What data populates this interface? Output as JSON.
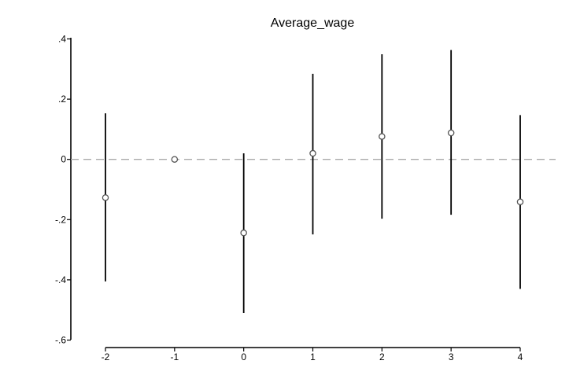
{
  "chart_data": {
    "type": "scatter",
    "title": "Average_wage",
    "xlabel": "",
    "ylabel": "",
    "x": [
      -2,
      -1,
      0,
      1,
      2,
      3,
      4
    ],
    "x_tick_labels": [
      "-2",
      "-1",
      "0",
      "1",
      "2",
      "3",
      "4"
    ],
    "y_ticks": [
      0.4,
      0.2,
      0,
      -0.2,
      -0.4,
      -0.6
    ],
    "y_tick_labels": [
      ".4",
      ".2",
      "0",
      "-.2",
      "-.4",
      "-.6"
    ],
    "ylim": [
      -0.6,
      0.4
    ],
    "xlim": [
      -2,
      4
    ],
    "grid": false,
    "reference_line": {
      "y": 0,
      "style": "dashed",
      "color": "#aaaaaa"
    },
    "series": [
      {
        "marker": "hollow-circle",
        "color": "#555555",
        "points": [
          {
            "x": -2,
            "y": -0.127,
            "ci_low": -0.405,
            "ci_high": 0.153
          },
          {
            "x": -1,
            "y": 0.0,
            "ci_low": null,
            "ci_high": null
          },
          {
            "x": 0,
            "y": -0.244,
            "ci_low": -0.51,
            "ci_high": 0.02
          },
          {
            "x": 1,
            "y": 0.02,
            "ci_low": -0.249,
            "ci_high": 0.284
          },
          {
            "x": 2,
            "y": 0.076,
            "ci_low": -0.197,
            "ci_high": 0.349
          },
          {
            "x": 3,
            "y": 0.088,
            "ci_low": -0.184,
            "ci_high": 0.363
          },
          {
            "x": 4,
            "y": -0.141,
            "ci_low": -0.43,
            "ci_high": 0.147
          }
        ]
      }
    ]
  }
}
